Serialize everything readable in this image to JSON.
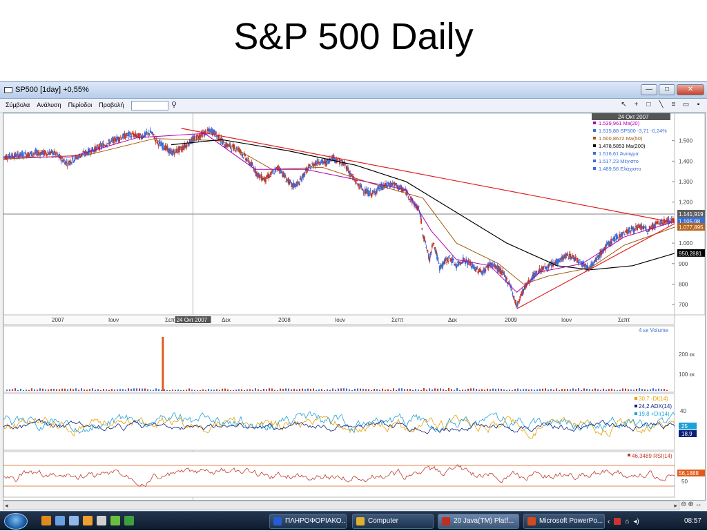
{
  "slide": {
    "title": "S&P 500 Daily"
  },
  "window": {
    "title": "SP500 [1day] +0,55%",
    "menu": [
      "Σύμβολα",
      "Ανάλυση",
      "Περίοδοι",
      "Προβολή"
    ],
    "buttons": {
      "minimize": "—",
      "maximize": "□",
      "close": "✕"
    },
    "tools": [
      "↖",
      "+",
      "□",
      "╲",
      "≡",
      "▭",
      "▪"
    ]
  },
  "chart_data": {
    "type": "line",
    "title": "",
    "crosshair_date": "24 Οκτ 2007",
    "info_box": [
      {
        "text": "1.539,961 Ma(20)",
        "color": "#b000b0"
      },
      {
        "text": "1.515,88 SP500 -3,71 -0,24%",
        "color": "#3a6fd8"
      },
      {
        "text": "1.500,8672 Ma(50)",
        "color": "#a05a10"
      },
      {
        "text": "1.478,5853 Ma(200)",
        "color": "#000000"
      },
      {
        "text": "1.516,61 Άνοιγμα",
        "color": "#3a6fd8"
      },
      {
        "text": "1.517,23 Μέγιστο",
        "color": "#3a6fd8"
      },
      {
        "text": "1.489,56 Ελάχιστο",
        "color": "#3a6fd8"
      }
    ],
    "x_ticks": [
      "2007",
      "Ιουν",
      "Σεπτ",
      "Δεκ",
      "2008",
      "Ιουν",
      "Σεπτ",
      "Δεκ",
      "2009",
      "Ιουν",
      "Σεπτ"
    ],
    "y_ticks": [
      1500,
      1400,
      1300,
      1200,
      1000,
      900,
      800,
      700
    ],
    "y_tick_labels": [
      "1.500",
      "1.400",
      "1.300",
      "1.200",
      "1.000",
      "900",
      "800",
      "700"
    ],
    "ylim": [
      650,
      1600
    ],
    "price_tags": [
      {
        "text": "1.141,919",
        "value": 1141.919,
        "bg": "#606060",
        "fg": "#ffffff"
      },
      {
        "text": "1.105,98",
        "value": 1105.98,
        "bg": "#3a6fd8",
        "fg": "#ffffff"
      },
      {
        "text": "1.077,895",
        "value": 1077.895,
        "bg": "#b5651d",
        "fg": "#ffffff"
      },
      {
        "text": "950,2881",
        "value": 950.2881,
        "bg": "#000000",
        "fg": "#ffffff"
      }
    ],
    "close_path": [
      [
        0,
        1420
      ],
      [
        10,
        1430
      ],
      [
        20,
        1440
      ],
      [
        30,
        1440
      ],
      [
        38,
        1390
      ],
      [
        45,
        1425
      ],
      [
        52,
        1450
      ],
      [
        60,
        1480
      ],
      [
        68,
        1510
      ],
      [
        75,
        1530
      ],
      [
        82,
        1520
      ],
      [
        88,
        1540
      ],
      [
        92,
        1490
      ],
      [
        96,
        1470
      ],
      [
        100,
        1440
      ],
      [
        106,
        1460
      ],
      [
        112,
        1500
      ],
      [
        118,
        1530
      ],
      [
        124,
        1550
      ],
      [
        128,
        1520
      ],
      [
        132,
        1480
      ],
      [
        136,
        1470
      ],
      [
        140,
        1460
      ],
      [
        144,
        1420
      ],
      [
        148,
        1380
      ],
      [
        152,
        1330
      ],
      [
        156,
        1310
      ],
      [
        160,
        1340
      ],
      [
        164,
        1370
      ],
      [
        168,
        1320
      ],
      [
        172,
        1280
      ],
      [
        176,
        1290
      ],
      [
        180,
        1350
      ],
      [
        184,
        1380
      ],
      [
        188,
        1400
      ],
      [
        192,
        1390
      ],
      [
        196,
        1420
      ],
      [
        200,
        1400
      ],
      [
        204,
        1380
      ],
      [
        208,
        1320
      ],
      [
        212,
        1280
      ],
      [
        216,
        1250
      ],
      [
        220,
        1240
      ],
      [
        224,
        1270
      ],
      [
        228,
        1280
      ],
      [
        232,
        1290
      ],
      [
        236,
        1270
      ],
      [
        240,
        1250
      ],
      [
        244,
        1200
      ],
      [
        248,
        1160
      ],
      [
        250,
        1050
      ],
      [
        252,
        980
      ],
      [
        254,
        920
      ],
      [
        256,
        1010
      ],
      [
        258,
        950
      ],
      [
        260,
        880
      ],
      [
        262,
        900
      ],
      [
        266,
        930
      ],
      [
        270,
        890
      ],
      [
        274,
        920
      ],
      [
        278,
        900
      ],
      [
        282,
        870
      ],
      [
        286,
        860
      ],
      [
        290,
        900
      ],
      [
        294,
        880
      ],
      [
        298,
        850
      ],
      [
        300,
        820
      ],
      [
        302,
        800
      ],
      [
        304,
        740
      ],
      [
        306,
        690
      ],
      [
        308,
        740
      ],
      [
        312,
        800
      ],
      [
        316,
        840
      ],
      [
        320,
        870
      ],
      [
        324,
        880
      ],
      [
        328,
        900
      ],
      [
        332,
        920
      ],
      [
        336,
        940
      ],
      [
        340,
        930
      ],
      [
        344,
        910
      ],
      [
        348,
        880
      ],
      [
        352,
        900
      ],
      [
        356,
        950
      ],
      [
        360,
        990
      ],
      [
        364,
        1020
      ],
      [
        368,
        1040
      ],
      [
        372,
        1060
      ],
      [
        376,
        1070
      ],
      [
        380,
        1080
      ],
      [
        384,
        1060
      ],
      [
        388,
        1090
      ],
      [
        392,
        1100
      ],
      [
        396,
        1110
      ],
      [
        400,
        1105.98
      ]
    ],
    "ma20": [
      [
        0,
        1420
      ],
      [
        40,
        1420
      ],
      [
        80,
        1515
      ],
      [
        120,
        1535
      ],
      [
        150,
        1360
      ],
      [
        180,
        1360
      ],
      [
        210,
        1310
      ],
      [
        240,
        1260
      ],
      [
        255,
        1060
      ],
      [
        270,
        920
      ],
      [
        290,
        890
      ],
      [
        306,
        760
      ],
      [
        320,
        860
      ],
      [
        345,
        900
      ],
      [
        370,
        1030
      ],
      [
        400,
        1105
      ]
    ],
    "ma50": [
      [
        0,
        1410
      ],
      [
        50,
        1430
      ],
      [
        90,
        1510
      ],
      [
        130,
        1500
      ],
      [
        160,
        1360
      ],
      [
        190,
        1370
      ],
      [
        220,
        1290
      ],
      [
        250,
        1220
      ],
      [
        270,
        1000
      ],
      [
        295,
        900
      ],
      [
        310,
        800
      ],
      [
        325,
        840
      ],
      [
        350,
        880
      ],
      [
        370,
        990
      ],
      [
        400,
        1078
      ]
    ],
    "ma200": [
      [
        100,
        1480
      ],
      [
        130,
        1505
      ],
      [
        170,
        1450
      ],
      [
        210,
        1380
      ],
      [
        240,
        1300
      ],
      [
        270,
        1150
      ],
      [
        300,
        1000
      ],
      [
        330,
        890
      ],
      [
        350,
        870
      ],
      [
        375,
        890
      ],
      [
        400,
        950
      ]
    ],
    "trend_down": [
      [
        106,
        1560
      ],
      [
        400,
        1100
      ]
    ],
    "trend_up": [
      [
        306,
        680
      ],
      [
        400,
        1095
      ]
    ],
    "horizontal_line": 1141.919,
    "crosshair_x": 113,
    "volume": {
      "legend": "4 εκ Volume",
      "ticks": [
        "200 εκ",
        "100 εκ"
      ],
      "spike_x": 95
    },
    "dmi": {
      "legend": [
        {
          "text": "30,7 -DI(14)",
          "color": "#e8a000"
        },
        {
          "text": "24,2 ADX(14)",
          "color": "#0a1e7a"
        },
        {
          "text": "19,8 +DI(14)",
          "color": "#1ea0d8"
        }
      ],
      "ticks": [
        "40"
      ],
      "tags": [
        {
          "text": "25",
          "bg": "#1ea0d8"
        },
        {
          "text": "18,9",
          "bg": "#0a1e7a"
        }
      ]
    },
    "rsi": {
      "legend": "46,3489 RSI(14)",
      "ticks": [
        "50"
      ],
      "tag": "56,1888"
    }
  },
  "taskbar": {
    "buttons": [
      {
        "label": "ΠΛΗΡΟΦΟΡΙΑΚΟ...",
        "color": "#2a5bd7"
      },
      {
        "label": "Computer",
        "color": "#e0b030"
      },
      {
        "label": "20 Java(TM) Platf...",
        "color": "#c03020"
      },
      {
        "label": "Microsoft PowerPo...",
        "color": "#d24a1e"
      }
    ],
    "clock": "08:57"
  }
}
